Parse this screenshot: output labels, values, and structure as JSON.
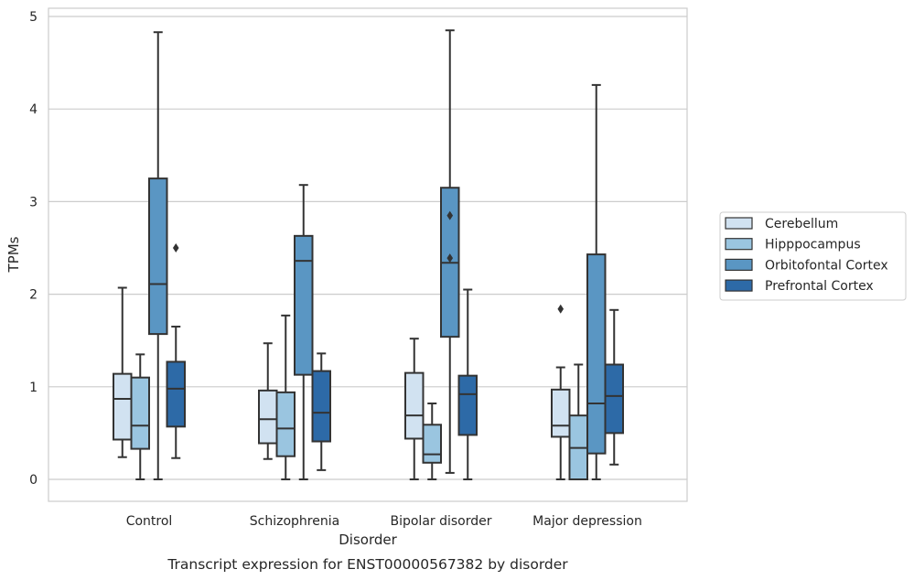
{
  "chart_data": {
    "type": "box",
    "caption": "Transcript expression for ENST00000567382 by disorder",
    "xlabel": "Disorder",
    "ylabel": "TPMs",
    "ylim": [
      -0.22,
      5.1
    ],
    "yticks": [
      0,
      1,
      2,
      3,
      4,
      5
    ],
    "grid": true,
    "legend_position": "right",
    "categories": [
      "Control",
      "Schizophrenia",
      "Bipolar disorder",
      "Major depression"
    ],
    "series": [
      {
        "name": "Cerebellum",
        "color": "#d1e2f1",
        "boxes": [
          {
            "whislo": 0.24,
            "q1": 0.43,
            "med": 0.87,
            "q3": 1.14,
            "whishi": 2.07,
            "fliers": []
          },
          {
            "whislo": 0.22,
            "q1": 0.39,
            "med": 0.65,
            "q3": 0.96,
            "whishi": 1.47,
            "fliers": []
          },
          {
            "whislo": 0.0,
            "q1": 0.44,
            "med": 0.69,
            "q3": 1.15,
            "whishi": 1.52,
            "fliers": []
          },
          {
            "whislo": 0.0,
            "q1": 0.46,
            "med": 0.58,
            "q3": 0.97,
            "whishi": 1.21,
            "fliers": [
              1.84
            ]
          }
        ]
      },
      {
        "name": "Hipppocampus",
        "color": "#9ac5e0",
        "boxes": [
          {
            "whislo": 0.0,
            "q1": 0.33,
            "med": 0.58,
            "q3": 1.1,
            "whishi": 1.35,
            "fliers": []
          },
          {
            "whislo": 0.0,
            "q1": 0.25,
            "med": 0.55,
            "q3": 0.94,
            "whishi": 1.77,
            "fliers": []
          },
          {
            "whislo": 0.0,
            "q1": 0.18,
            "med": 0.27,
            "q3": 0.59,
            "whishi": 0.82,
            "fliers": []
          },
          {
            "whislo": 0.0,
            "q1": 0.0,
            "med": 0.34,
            "q3": 0.69,
            "whishi": 1.24,
            "fliers": []
          }
        ]
      },
      {
        "name": "Orbitofontal Cortex",
        "color": "#5a96c3",
        "boxes": [
          {
            "whislo": 0.0,
            "q1": 1.57,
            "med": 2.11,
            "q3": 3.25,
            "whishi": 4.83,
            "fliers": []
          },
          {
            "whislo": 0.0,
            "q1": 1.13,
            "med": 2.36,
            "q3": 2.63,
            "whishi": 3.18,
            "fliers": []
          },
          {
            "whislo": 0.07,
            "q1": 1.54,
            "med": 2.34,
            "q3": 3.15,
            "whishi": 4.85,
            "fliers": [
              2.85,
              2.39
            ]
          },
          {
            "whislo": 0.0,
            "q1": 0.28,
            "med": 0.82,
            "q3": 2.43,
            "whishi": 4.26,
            "fliers": []
          }
        ]
      },
      {
        "name": "Prefrontal Cortex",
        "color": "#2d6aa7",
        "boxes": [
          {
            "whislo": 0.23,
            "q1": 0.57,
            "med": 0.98,
            "q3": 1.27,
            "whishi": 1.65,
            "fliers": [
              2.5
            ]
          },
          {
            "whislo": 0.1,
            "q1": 0.41,
            "med": 0.72,
            "q3": 1.17,
            "whishi": 1.36,
            "fliers": []
          },
          {
            "whislo": 0.0,
            "q1": 0.48,
            "med": 0.92,
            "q3": 1.12,
            "whishi": 2.05,
            "fliers": []
          },
          {
            "whislo": 0.16,
            "q1": 0.5,
            "med": 0.9,
            "q3": 1.24,
            "whishi": 1.83,
            "fliers": []
          }
        ]
      }
    ]
  }
}
